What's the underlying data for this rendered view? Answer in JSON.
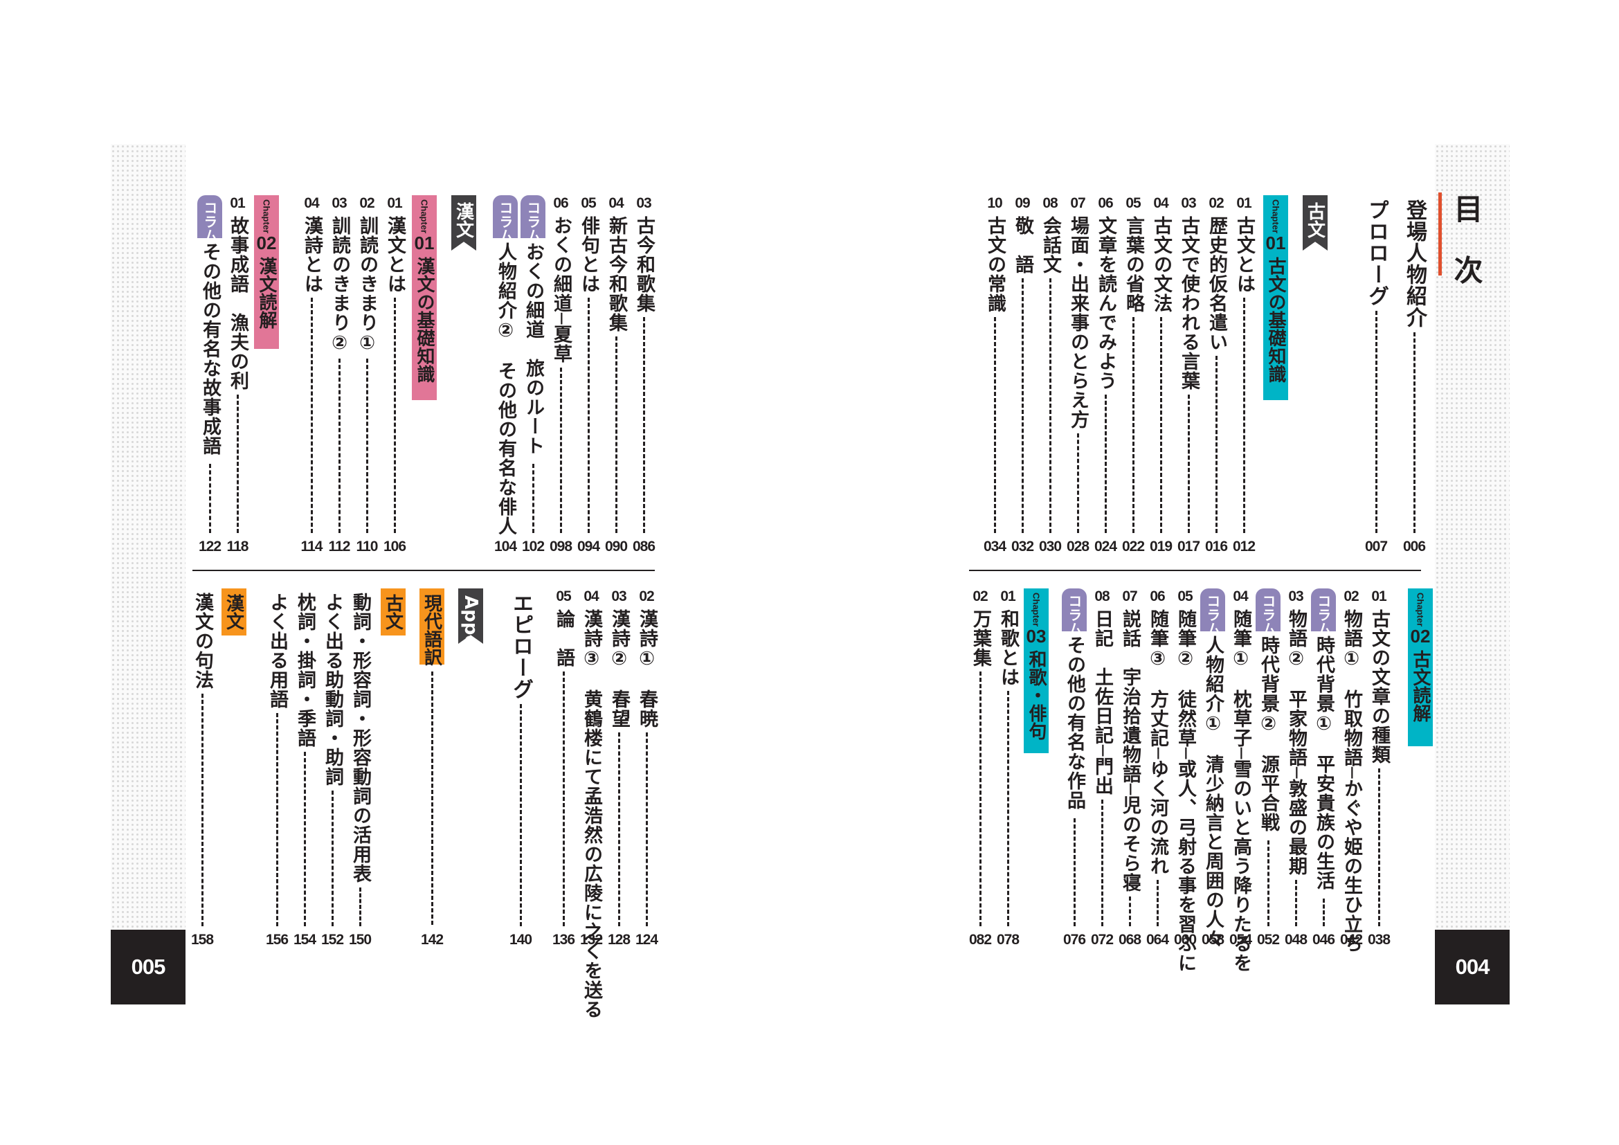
{
  "document": {
    "heading": "目 次",
    "page_left": "005",
    "page_right": "004",
    "colors": {
      "cyan": "#00b4c6",
      "pink": "#e17697",
      "lavender": "#8e84b8",
      "grey": "#414042",
      "orange": "#f7941d",
      "red": "#e0502e"
    }
  },
  "right_top": {
    "prologue1": {
      "title": "登場人物紹介",
      "page": "006"
    },
    "prologue2": {
      "title": "プロローグ",
      "page": "007"
    },
    "flag": "古文",
    "chapter": {
      "label": "Chapter",
      "num": "01",
      "title": "古文の基礎知識"
    },
    "items": [
      {
        "num": "01",
        "title": "古文とは",
        "page": "012"
      },
      {
        "num": "02",
        "title": "歴史的仮名遣い",
        "page": "016"
      },
      {
        "num": "03",
        "title": "古文で使われる言葉",
        "page": "017"
      },
      {
        "num": "04",
        "title": "古文の文法",
        "page": "019"
      },
      {
        "num": "05",
        "title": "言葉の省略",
        "page": "022"
      },
      {
        "num": "06",
        "title": "文章を読んでみよう",
        "page": "024"
      },
      {
        "num": "07",
        "title": "場面・出来事のとらえ方",
        "page": "028"
      },
      {
        "num": "08",
        "title": "会話文",
        "page": "030"
      },
      {
        "num": "09",
        "title": "敬　語",
        "page": "032"
      },
      {
        "num": "10",
        "title": "古文の常識",
        "page": "034"
      }
    ]
  },
  "right_bottom": {
    "chapter2": {
      "label": "Chapter",
      "num": "02",
      "title": "古文読解"
    },
    "items": [
      {
        "num": "01",
        "title": "古文の文章の種類",
        "page": "038"
      },
      {
        "num": "02",
        "title": "物語①　竹取物語─かぐや姫の生ひ立ち",
        "page": "042"
      },
      {
        "tag": "コラム",
        "title": "時代背景①　平安貴族の生活",
        "page": "046"
      },
      {
        "num": "03",
        "title": "物語②　平家物語─敦盛の最期",
        "page": "048"
      },
      {
        "tag": "コラム",
        "title": "時代背景②　源平合戦",
        "page": "052"
      },
      {
        "num": "04",
        "title": "随筆①　枕草子─雪のいと高う降りたるを",
        "page": "054"
      },
      {
        "tag": "コラム",
        "title": "人物紹介①　清少納言と周囲の人々",
        "page": "058"
      },
      {
        "num": "05",
        "title": "随筆②　徒然草─或人、弓射る事を習ふに",
        "page": "060"
      },
      {
        "num": "06",
        "title": "随筆③　方丈記─ゆく河の流れ",
        "page": "064"
      },
      {
        "num": "07",
        "title": "説話　宇治拾遺物語─児のそら寝",
        "page": "068"
      },
      {
        "num": "08",
        "title": "日記　土佐日記─門出",
        "page": "072"
      },
      {
        "tag": "コラム",
        "title": "その他の有名な作品",
        "page": "076"
      }
    ],
    "chapter3": {
      "label": "Chapter",
      "num": "03",
      "title": "和歌・俳句"
    },
    "items3": [
      {
        "num": "01",
        "title": "和歌とは",
        "page": "078"
      },
      {
        "num": "02",
        "title": "万葉集",
        "page": "082"
      }
    ]
  },
  "left_top": {
    "items_a": [
      {
        "num": "03",
        "title": "古今和歌集",
        "page": "086"
      },
      {
        "num": "04",
        "title": "新古今和歌集",
        "page": "090"
      },
      {
        "num": "05",
        "title": "俳句とは",
        "page": "094"
      },
      {
        "num": "06",
        "title": "おくの細道─夏草",
        "page": "098"
      },
      {
        "tag": "コラム",
        "title": "おくの細道　旅のルート",
        "page": "102"
      },
      {
        "tag": "コラム",
        "title": "人物紹介②　その他の有名な俳人",
        "page": "104"
      }
    ],
    "flag": "漢文",
    "chapter": {
      "label": "Chapter",
      "num": "01",
      "title": "漢文の基礎知識"
    },
    "items_b": [
      {
        "num": "01",
        "title": "漢文とは",
        "page": "106"
      },
      {
        "num": "02",
        "title": "訓読のきまり①",
        "page": "110"
      },
      {
        "num": "03",
        "title": "訓読のきまり②",
        "page": "112"
      },
      {
        "num": "04",
        "title": "漢詩とは",
        "page": "114"
      }
    ],
    "chapter2": {
      "label": "Chapter",
      "num": "02",
      "title": "漢文読解"
    },
    "items_c": [
      {
        "num": "01",
        "title": "故事成語　漁夫の利",
        "page": "118"
      },
      {
        "tag": "コラム",
        "title": "その他の有名な故事成語",
        "page": "122"
      }
    ]
  },
  "left_bottom": {
    "items_a": [
      {
        "num": "02",
        "title": "漢詩①　春暁",
        "page": "124"
      },
      {
        "num": "03",
        "title": "漢詩②　春望",
        "page": "128"
      },
      {
        "num": "04",
        "title": "漢詩③　黄鶴楼にて孟浩然の広陵に之くを送る",
        "page": "132"
      },
      {
        "num": "05",
        "title": "論　語",
        "page": "136"
      }
    ],
    "epilogue": {
      "title": "エピローグ",
      "page": "140"
    },
    "appendix": "Appendix",
    "gendai": {
      "label": "現代語訳",
      "page": "142"
    },
    "kobun_box": "古文",
    "items_b": [
      {
        "title": "動詞・形容詞・形容動詞の活用表",
        "page": "150"
      },
      {
        "title": "よく出る助動詞・助詞",
        "page": "152"
      },
      {
        "title": "枕詞・掛詞・季語",
        "page": "154"
      },
      {
        "title": "よく出る用語",
        "page": "156"
      }
    ],
    "kanbun_box": "漢文",
    "items_c": [
      {
        "title": "漢文の句法",
        "page": "158"
      }
    ]
  }
}
